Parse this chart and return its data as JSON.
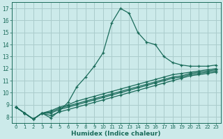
{
  "xlabel": "Humidex (Indice chaleur)",
  "background_color": "#cceaea",
  "grid_color": "#aacccc",
  "line_color": "#1a6b5a",
  "xlim": [
    -0.5,
    23.5
  ],
  "ylim": [
    7.5,
    17.5
  ],
  "xticks": [
    0,
    1,
    2,
    3,
    4,
    5,
    6,
    7,
    8,
    9,
    10,
    11,
    12,
    13,
    14,
    15,
    16,
    17,
    18,
    19,
    20,
    21,
    22,
    23
  ],
  "yticks": [
    8,
    9,
    10,
    11,
    12,
    13,
    14,
    15,
    16,
    17
  ],
  "series": [
    [
      8.8,
      8.3,
      7.8,
      8.3,
      7.9,
      8.5,
      9.2,
      10.5,
      11.3,
      12.2,
      13.3,
      15.8,
      17.0,
      16.6,
      15.0,
      14.2,
      14.0,
      13.0,
      12.5,
      12.3,
      12.2,
      12.2,
      12.2,
      12.3
    ],
    [
      8.8,
      8.3,
      7.8,
      8.3,
      8.5,
      8.8,
      9.0,
      9.3,
      9.5,
      9.7,
      9.9,
      10.1,
      10.3,
      10.5,
      10.7,
      10.9,
      11.1,
      11.3,
      11.5,
      11.6,
      11.7,
      11.8,
      11.9,
      12.0
    ],
    [
      8.8,
      8.3,
      7.8,
      8.3,
      8.4,
      8.7,
      8.9,
      9.1,
      9.3,
      9.5,
      9.7,
      9.9,
      10.1,
      10.3,
      10.5,
      10.7,
      10.9,
      11.1,
      11.3,
      11.4,
      11.6,
      11.7,
      11.8,
      11.9
    ],
    [
      8.8,
      8.3,
      7.8,
      8.3,
      8.3,
      8.6,
      8.8,
      9.0,
      9.2,
      9.4,
      9.6,
      9.8,
      10.0,
      10.2,
      10.4,
      10.6,
      10.8,
      11.0,
      11.2,
      11.3,
      11.5,
      11.6,
      11.7,
      11.8
    ],
    [
      8.8,
      8.3,
      7.8,
      8.3,
      8.1,
      8.4,
      8.6,
      8.8,
      9.0,
      9.2,
      9.4,
      9.6,
      9.8,
      10.0,
      10.2,
      10.4,
      10.6,
      10.8,
      11.0,
      11.2,
      11.4,
      11.5,
      11.6,
      11.7
    ]
  ]
}
